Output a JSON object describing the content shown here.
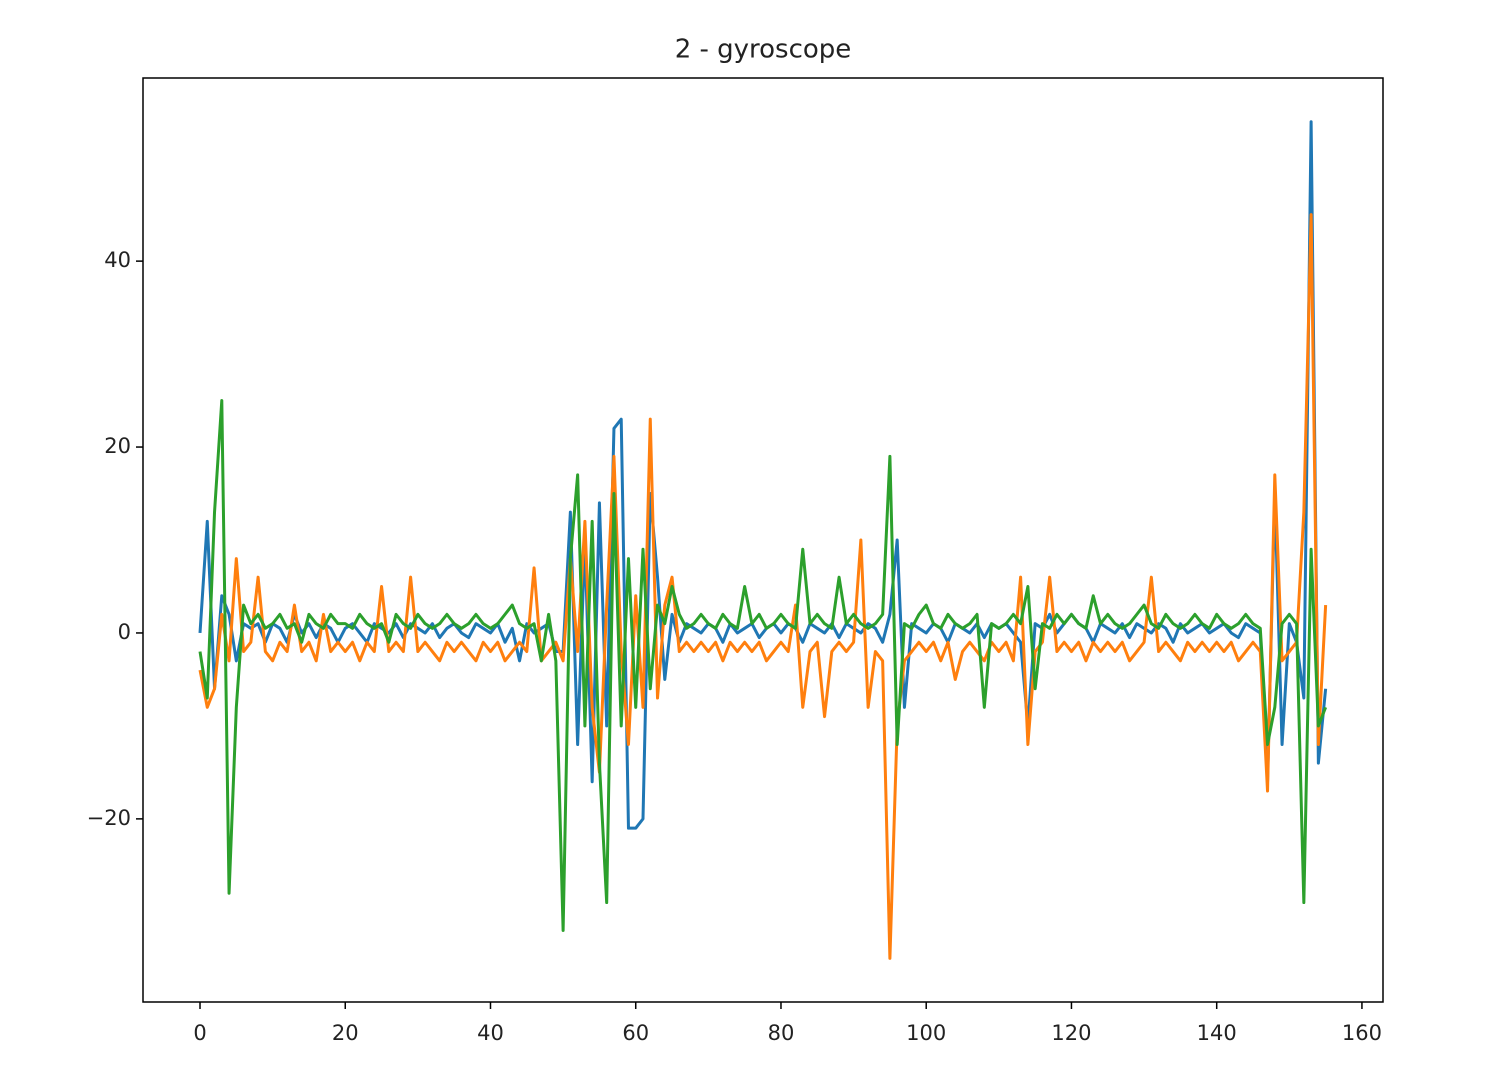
{
  "chart_data": {
    "type": "line",
    "title": "2 - gyroscope",
    "x": [
      0,
      1,
      2,
      3,
      4,
      5,
      6,
      7,
      8,
      9,
      10,
      11,
      12,
      13,
      14,
      15,
      16,
      17,
      18,
      19,
      20,
      21,
      22,
      23,
      24,
      25,
      26,
      27,
      28,
      29,
      30,
      31,
      32,
      33,
      34,
      35,
      36,
      37,
      38,
      39,
      40,
      41,
      42,
      43,
      44,
      45,
      46,
      47,
      48,
      49,
      50,
      51,
      52,
      53,
      54,
      55,
      56,
      57,
      58,
      59,
      60,
      61,
      62,
      63,
      64,
      65,
      66,
      67,
      68,
      69,
      70,
      71,
      72,
      73,
      74,
      75,
      76,
      77,
      78,
      79,
      80,
      81,
      82,
      83,
      84,
      85,
      86,
      87,
      88,
      89,
      90,
      91,
      92,
      93,
      94,
      95,
      96,
      97,
      98,
      99,
      100,
      101,
      102,
      103,
      104,
      105,
      106,
      107,
      108,
      109,
      110,
      111,
      112,
      113,
      114,
      115,
      116,
      117,
      118,
      119,
      120,
      121,
      122,
      123,
      124,
      125,
      126,
      127,
      128,
      129,
      130,
      131,
      132,
      133,
      134,
      135,
      136,
      137,
      138,
      139,
      140,
      141,
      142,
      143,
      144,
      145,
      146,
      147,
      148,
      149,
      150,
      151,
      152,
      153,
      154,
      155
    ],
    "series": [
      {
        "color": "#1f77b4",
        "values": [
          0,
          12,
          -6,
          4,
          2,
          -3,
          1,
          0.5,
          1,
          -1,
          1,
          0.5,
          -1,
          2,
          0,
          1,
          -0.5,
          1,
          0.5,
          -1,
          0.5,
          1,
          0,
          -1,
          1,
          0.5,
          0,
          1,
          -0.5,
          1,
          0.5,
          0,
          1,
          -0.5,
          0.5,
          1,
          0,
          -0.5,
          1,
          0.5,
          0,
          1,
          -1,
          0.5,
          -3,
          1,
          0,
          0.5,
          1,
          -2,
          -2,
          13,
          -12,
          10,
          -16,
          14,
          -10,
          22,
          23,
          -21,
          -21,
          -20,
          15,
          6,
          -5,
          2,
          -1,
          1,
          0.5,
          0,
          1,
          0.5,
          -1,
          1,
          0,
          0.5,
          1,
          -0.5,
          0.5,
          1,
          0,
          1,
          0.5,
          -1,
          1,
          0.5,
          0,
          1,
          -0.5,
          1,
          0.5,
          0,
          1,
          0.5,
          -1,
          2,
          10,
          -8,
          1,
          0.5,
          0,
          1,
          0.5,
          -1,
          1,
          0.5,
          0,
          1,
          -0.5,
          1,
          0.5,
          1,
          0,
          -1,
          -10,
          1,
          0.5,
          2,
          0,
          1,
          2,
          1,
          0.5,
          -1,
          1,
          0.5,
          0,
          1,
          -0.5,
          1,
          0.5,
          0,
          1,
          0.5,
          -1,
          1,
          0,
          0.5,
          1,
          0,
          0.5,
          1,
          0,
          -0.5,
          1,
          0.5,
          0,
          -16,
          15,
          -12,
          1,
          -1,
          -7,
          55,
          -14,
          -6
        ]
      },
      {
        "color": "#ff7f0e",
        "values": [
          -4,
          -8,
          -6,
          2,
          -3,
          8,
          -2,
          -1,
          6,
          -2,
          -3,
          -1,
          -2,
          3,
          -2,
          -1,
          -3,
          2,
          -2,
          -1,
          -2,
          -1,
          -3,
          -1,
          -2,
          5,
          -2,
          -1,
          -2,
          6,
          -2,
          -1,
          -2,
          -3,
          -1,
          -2,
          -1,
          -2,
          -3,
          -1,
          -2,
          -1,
          -3,
          -2,
          -1,
          -2,
          7,
          -3,
          -2,
          -1,
          -3,
          8,
          -2,
          12,
          -8,
          -15,
          3,
          19,
          -2,
          -12,
          4,
          -8,
          23,
          -7,
          3,
          6,
          -2,
          -1,
          -2,
          -1,
          -2,
          -1,
          -3,
          -1,
          -2,
          -1,
          -2,
          -1,
          -3,
          -2,
          -1,
          -2,
          3,
          -8,
          -2,
          -1,
          -9,
          -2,
          -1,
          -2,
          -1,
          10,
          -8,
          -2,
          -3,
          -35,
          -10,
          -3,
          -2,
          -1,
          -2,
          -1,
          -3,
          -1,
          -5,
          -2,
          -1,
          -2,
          -3,
          -1,
          -2,
          -1,
          -3,
          6,
          -12,
          -2,
          -1,
          6,
          -2,
          -1,
          -2,
          -1,
          -3,
          -1,
          -2,
          -1,
          -2,
          -1,
          -3,
          -2,
          -1,
          6,
          -2,
          -1,
          -2,
          -3,
          -1,
          -2,
          -1,
          -2,
          -1,
          -2,
          -1,
          -3,
          -2,
          -1,
          -2,
          -17,
          17,
          -3,
          -2,
          -1,
          13,
          45,
          -12,
          3
        ]
      },
      {
        "color": "#2ca02c",
        "values": [
          -2,
          -7,
          13,
          25,
          -28,
          -8,
          3,
          1,
          2,
          0.5,
          1,
          2,
          0.5,
          1,
          -1,
          2,
          1,
          0.5,
          2,
          1,
          1,
          0.5,
          2,
          1,
          0.5,
          1,
          -1,
          2,
          1,
          0.5,
          2,
          1,
          0.5,
          1,
          2,
          1,
          0.5,
          1,
          2,
          1,
          0.5,
          1,
          2,
          3,
          1,
          0.5,
          1,
          -3,
          2,
          -3,
          -32,
          8,
          17,
          -10,
          12,
          -14,
          -29,
          15,
          -10,
          8,
          -8,
          9,
          -6,
          3,
          1,
          5,
          2,
          0.5,
          1,
          2,
          1,
          0.5,
          2,
          1,
          0.5,
          5,
          1,
          2,
          0.5,
          1,
          2,
          1,
          0.5,
          9,
          1,
          2,
          1,
          0.5,
          6,
          1,
          2,
          1,
          0.5,
          1,
          2,
          19,
          -12,
          1,
          0.5,
          2,
          3,
          1,
          0.5,
          2,
          1,
          0.5,
          1,
          2,
          -8,
          1,
          0.5,
          1,
          2,
          1,
          5,
          -6,
          1,
          0.5,
          2,
          1,
          2,
          1,
          0.5,
          4,
          1,
          2,
          1,
          0.5,
          1,
          2,
          3,
          1,
          0.5,
          2,
          1,
          0.5,
          1,
          2,
          1,
          0.5,
          2,
          1,
          0.5,
          1,
          2,
          1,
          0.5,
          -12,
          -8,
          1,
          2,
          1,
          -29,
          9,
          -10,
          -8
        ]
      }
    ],
    "xlim": [
      -7.85,
      162.9
    ],
    "ylim": [
      -39.7,
      59.7
    ],
    "xticks": [
      0,
      20,
      40,
      60,
      80,
      100,
      120,
      140,
      160
    ],
    "yticks": [
      {
        "value": -20,
        "label": "−20"
      },
      0,
      20,
      40
    ]
  }
}
